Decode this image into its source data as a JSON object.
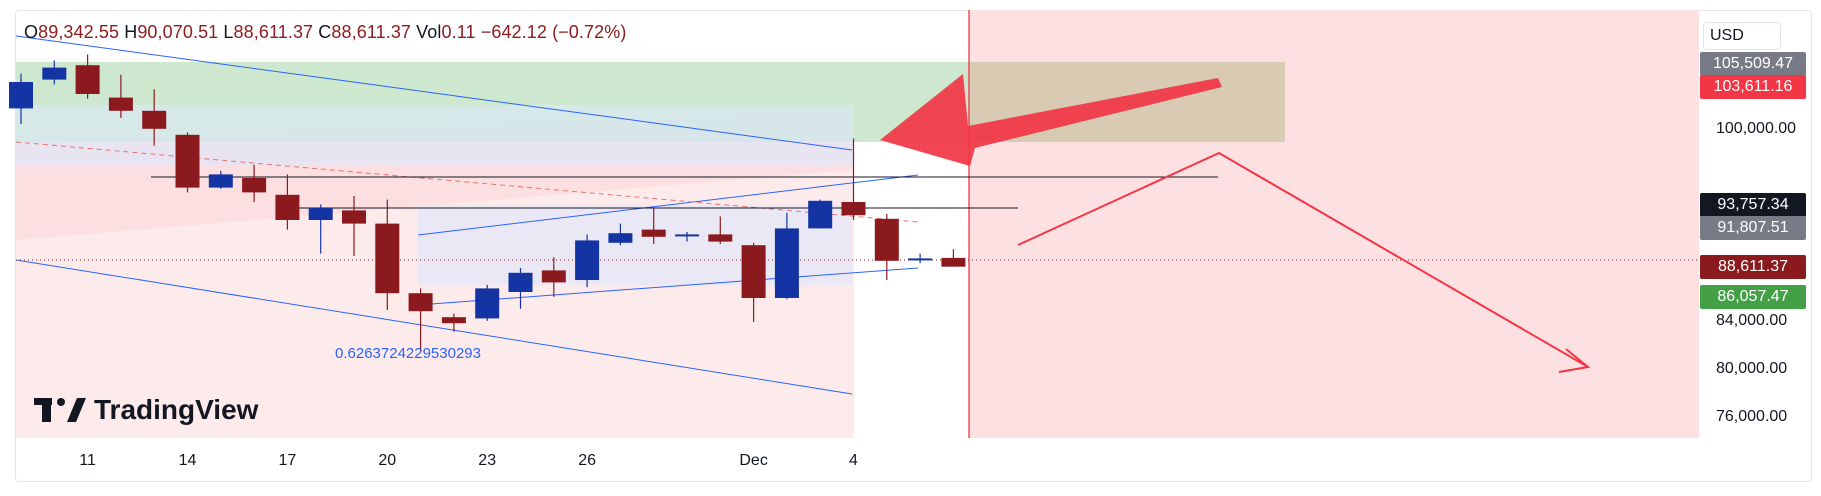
{
  "ohlc": {
    "open_label": "O",
    "open": "89,342.55",
    "high_label": "H",
    "high": "90,070.51",
    "low_label": "L",
    "low": "88,611.37",
    "close_label": "C",
    "close": "88,611.37",
    "vol_label": "Vol",
    "vol": "0.11",
    "change": "−642.12 (−0.72%)"
  },
  "currency": "USD",
  "logo_text": "TradingView",
  "fib_label": "0.6263724229530293",
  "colors": {
    "up": "#1434a4",
    "down": "#8b1a1e",
    "trendline": "#2962ff",
    "annotation_red": "#f23645",
    "green_zone": "#c8e6c9",
    "red_zone": "#fde0e2"
  },
  "chart_data": {
    "type": "candlestick",
    "x_ticks": [
      "11",
      "14",
      "17",
      "20",
      "23",
      "26",
      "Dec",
      "4"
    ],
    "y_ticks": [
      "100,000.00",
      "84,000.00",
      "80,000.00",
      "76,000.00"
    ],
    "ylim": [
      73000,
      111000
    ],
    "price_badges": [
      {
        "value": "105,509.47",
        "color": "#787b86"
      },
      {
        "value": "103,611.16",
        "color": "#f23645"
      },
      {
        "value": "93,757.34",
        "color": "#131722"
      },
      {
        "value": "91,807.51",
        "color": "#787b86"
      },
      {
        "value": "88,611.37",
        "color": "#8b1a1e"
      },
      {
        "value": "86,057.47",
        "color": "#43a047"
      }
    ],
    "candles": [
      {
        "o": 101800,
        "h": 104700,
        "l": 100500,
        "c": 104000
      },
      {
        "o": 104200,
        "h": 105800,
        "l": 103800,
        "c": 105200
      },
      {
        "o": 105400,
        "h": 106300,
        "l": 102600,
        "c": 103000
      },
      {
        "o": 102700,
        "h": 104600,
        "l": 101000,
        "c": 101600
      },
      {
        "o": 101600,
        "h": 103400,
        "l": 98700,
        "c": 100100
      },
      {
        "o": 99600,
        "h": 99800,
        "l": 94800,
        "c": 95200
      },
      {
        "o": 95200,
        "h": 96600,
        "l": 95100,
        "c": 96300
      },
      {
        "o": 96000,
        "h": 97100,
        "l": 94000,
        "c": 94800
      },
      {
        "o": 94600,
        "h": 96300,
        "l": 91700,
        "c": 92500
      },
      {
        "o": 92500,
        "h": 93800,
        "l": 89700,
        "c": 93500
      },
      {
        "o": 93300,
        "h": 94500,
        "l": 89500,
        "c": 92200
      },
      {
        "o": 92200,
        "h": 94200,
        "l": 85000,
        "c": 86400
      },
      {
        "o": 86400,
        "h": 86800,
        "l": 81500,
        "c": 84900
      },
      {
        "o": 84400,
        "h": 84700,
        "l": 83200,
        "c": 83900
      },
      {
        "o": 84300,
        "h": 87100,
        "l": 84100,
        "c": 86800
      },
      {
        "o": 86500,
        "h": 88500,
        "l": 85100,
        "c": 88100
      },
      {
        "o": 88300,
        "h": 89400,
        "l": 86100,
        "c": 87300
      },
      {
        "o": 87500,
        "h": 91300,
        "l": 86900,
        "c": 90800
      },
      {
        "o": 90600,
        "h": 92200,
        "l": 90400,
        "c": 91400
      },
      {
        "o": 91700,
        "h": 93500,
        "l": 90500,
        "c": 91100
      },
      {
        "o": 91200,
        "h": 91500,
        "l": 90700,
        "c": 91300
      },
      {
        "o": 91300,
        "h": 92800,
        "l": 90500,
        "c": 90700
      },
      {
        "o": 90400,
        "h": 90600,
        "l": 84000,
        "c": 86000
      },
      {
        "o": 86000,
        "h": 93100,
        "l": 85900,
        "c": 91800
      },
      {
        "o": 91800,
        "h": 94200,
        "l": 91800,
        "c": 94100
      },
      {
        "o": 94000,
        "h": 99300,
        "l": 92500,
        "c": 92900
      },
      {
        "o": 92600,
        "h": 93000,
        "l": 87500,
        "c": 89100
      },
      {
        "o": 89300,
        "h": 89700,
        "l": 88900,
        "c": 89300
      },
      {
        "o": 89342.55,
        "h": 90070.51,
        "l": 88611.37,
        "c": 88611.37
      }
    ]
  }
}
